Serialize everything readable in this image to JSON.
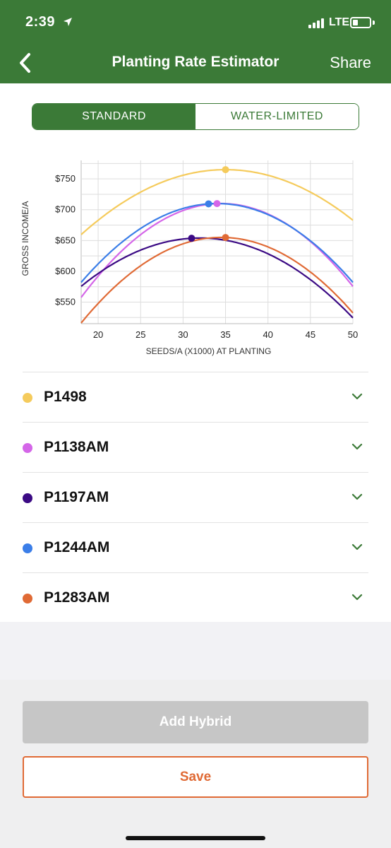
{
  "status": {
    "time": "2:39",
    "network": "LTE"
  },
  "header": {
    "title": "Planting Rate Estimator",
    "share_label": "Share"
  },
  "tabs": [
    {
      "label": "STANDARD",
      "active": true
    },
    {
      "label": "WATER-LIMITED",
      "active": false
    }
  ],
  "chart_data": {
    "type": "line",
    "xlabel": "SEEDS/A (X1000) AT PLANTING",
    "ylabel": "GROSS INCOME/A",
    "xlim": [
      18,
      50
    ],
    "ylim": [
      515,
      780
    ],
    "xticks": [
      20,
      25,
      30,
      35,
      40,
      45,
      50
    ],
    "yticks": [
      550,
      600,
      650,
      700,
      750
    ],
    "ytick_labels": [
      "$550",
      "$600",
      "$650",
      "$700",
      "$750"
    ],
    "grid": true,
    "series": [
      {
        "name": "P1498",
        "color": "#f5cb5c",
        "peak_x": 35,
        "peak_y": 765,
        "curvature": 0.365,
        "marker_x": 35
      },
      {
        "name": "P1138AM",
        "color": "#d466e8",
        "peak_x": 34.5,
        "peak_y": 710,
        "curvature": 0.56,
        "marker_x": 34
      },
      {
        "name": "P1197AM",
        "color": "#3b0a84",
        "peak_x": 32,
        "peak_y": 654,
        "curvature": 0.4,
        "marker_x": 31
      },
      {
        "name": "P1244AM",
        "color": "#3b7ee8",
        "peak_x": 34,
        "peak_y": 710,
        "curvature": 0.5,
        "marker_x": 33
      },
      {
        "name": "P1283AM",
        "color": "#e06a35",
        "peak_x": 34.5,
        "peak_y": 655,
        "curvature": 0.51,
        "marker_x": 35
      }
    ]
  },
  "hybrids": [
    {
      "name": "P1498",
      "color": "#f5cb5c"
    },
    {
      "name": "P1138AM",
      "color": "#d466e8"
    },
    {
      "name": "P1197AM",
      "color": "#3b0a84"
    },
    {
      "name": "P1244AM",
      "color": "#3b7ee8"
    },
    {
      "name": "P1283AM",
      "color": "#e06a35"
    }
  ],
  "actions": {
    "add_label": "Add Hybrid",
    "save_label": "Save"
  },
  "colors": {
    "brand": "#3b7a37",
    "accent": "#e06a35",
    "disabled": "#c6c6c6"
  }
}
